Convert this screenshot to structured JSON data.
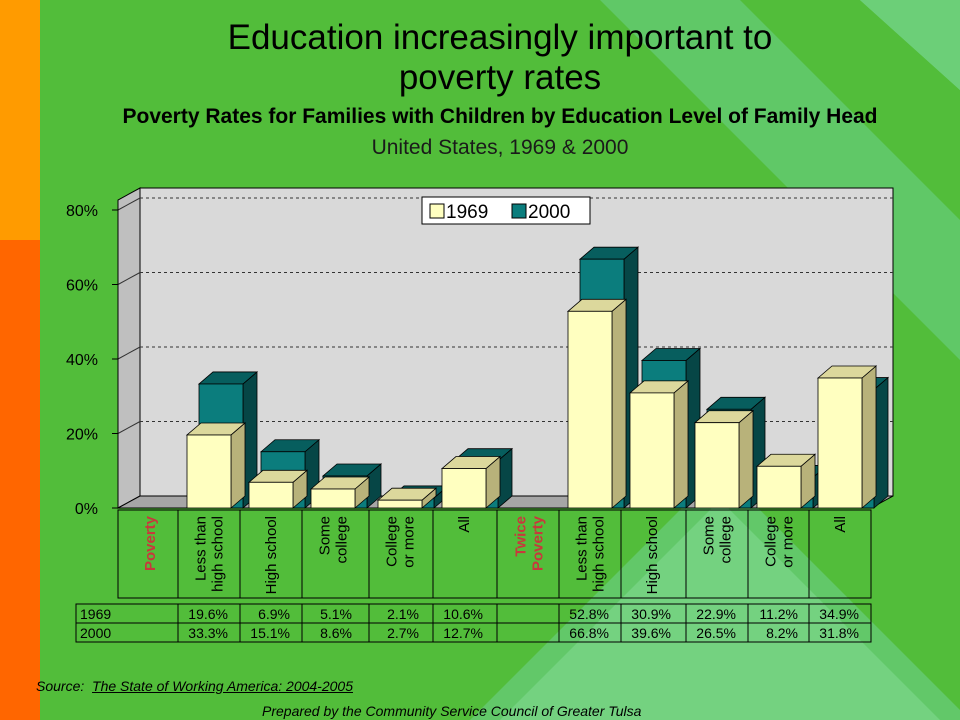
{
  "header": {
    "title_line1": "Education increasingly important to",
    "title_line2": "poverty rates",
    "subtitle": "Poverty Rates for Families with Children by Education Level of Family Head",
    "subtitle2": "United States, 1969 & 2000"
  },
  "footer": {
    "source_label": "Source:",
    "source_title": "The State of Working America: 2004-2005",
    "prepared_by": "Prepared by the Community Service Council of Greater Tulsa"
  },
  "colors": {
    "background": "#52bd3a",
    "series_1969": "#ffffc0",
    "series_2000": "#0b7d7d",
    "group_label": "#c8383c"
  },
  "chart_data": {
    "type": "bar",
    "title": "Poverty Rates for Families with Children by Education Level of Family Head",
    "subtitle": "United States, 1969 & 2000",
    "ylim": [
      0,
      80
    ],
    "y_ticks": [
      "0%",
      "20%",
      "40%",
      "60%",
      "80%"
    ],
    "groups": [
      "Poverty",
      "Twice Poverty"
    ],
    "categories": [
      "Less than high school",
      "High school",
      "Some college",
      "College or more",
      "All",
      "Less than high school",
      "High school",
      "Some college",
      "College or more",
      "All"
    ],
    "series": [
      {
        "name": "1969",
        "values": [
          19.6,
          6.9,
          5.1,
          2.1,
          10.6,
          52.8,
          30.9,
          22.9,
          11.2,
          34.9
        ]
      },
      {
        "name": "2000",
        "values": [
          33.3,
          15.1,
          8.6,
          2.7,
          12.7,
          66.8,
          39.6,
          26.5,
          8.2,
          31.8
        ]
      }
    ],
    "table_rows": [
      {
        "label": "1969",
        "cells": [
          "19.6%",
          "6.9%",
          "5.1%",
          "2.1%",
          "10.6%",
          "52.8%",
          "30.9%",
          "22.9%",
          "11.2%",
          "34.9%"
        ]
      },
      {
        "label": "2000",
        "cells": [
          "33.3%",
          "15.1%",
          "8.6%",
          "2.7%",
          "12.7%",
          "66.8%",
          "39.6%",
          "26.5%",
          "8.2%",
          "31.8%"
        ]
      }
    ],
    "legend_position": "top-center",
    "grid": true
  }
}
